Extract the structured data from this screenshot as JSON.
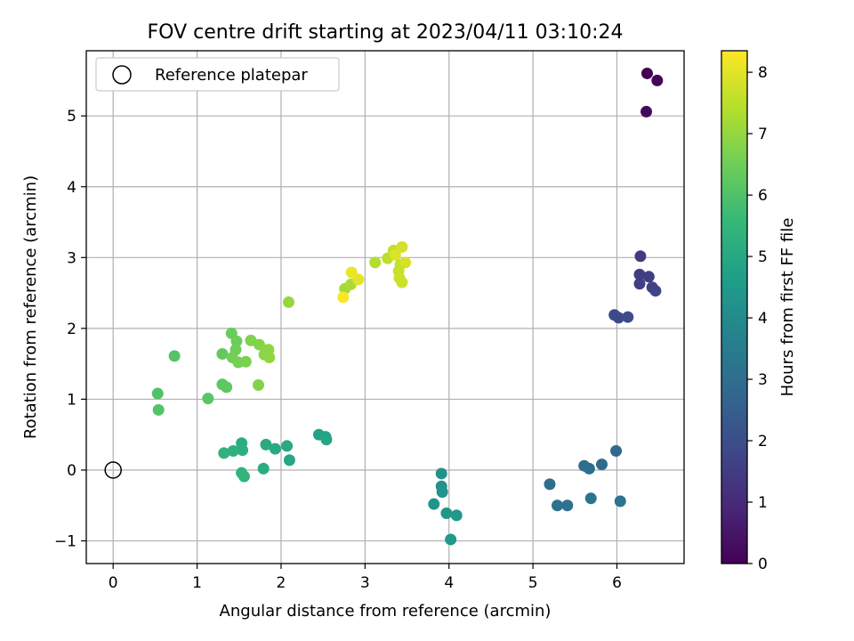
{
  "chart_data": {
    "type": "scatter",
    "title": "FOV centre drift starting at 2023/04/11 03:10:24",
    "xlabel": "Angular distance from reference (arcmin)",
    "ylabel": "Rotation from reference (arcmin)",
    "xlim": [
      -0.32,
      6.8
    ],
    "ylim": [
      -1.32,
      5.92
    ],
    "xticks": [
      0,
      1,
      2,
      3,
      4,
      5,
      6
    ],
    "yticks": [
      -1,
      0,
      1,
      2,
      3,
      4,
      5
    ],
    "xtick_labels": [
      "0",
      "1",
      "2",
      "3",
      "4",
      "5",
      "6"
    ],
    "ytick_labels": [
      "−1",
      "0",
      "1",
      "2",
      "3",
      "4",
      "5"
    ],
    "grid": true,
    "legend": {
      "placement": "top-left",
      "label": "Reference platepar"
    },
    "reference_point": {
      "x": 0,
      "y": 0
    },
    "colorbar": {
      "label": "Hours from first FF file",
      "min": 0,
      "max": 8.35,
      "ticks": [
        0,
        1,
        2,
        3,
        4,
        5,
        6,
        7,
        8
      ],
      "tick_labels": [
        "0",
        "1",
        "2",
        "3",
        "4",
        "5",
        "6",
        "7",
        "8"
      ],
      "colormap": "viridis"
    },
    "points": [
      {
        "x": 6.36,
        "y": 5.6,
        "c": 0.0
      },
      {
        "x": 6.48,
        "y": 5.5,
        "c": 0.1
      },
      {
        "x": 6.35,
        "y": 5.06,
        "c": 0.2
      },
      {
        "x": 6.28,
        "y": 3.02,
        "c": 1.4
      },
      {
        "x": 6.27,
        "y": 2.76,
        "c": 1.5
      },
      {
        "x": 6.38,
        "y": 2.73,
        "c": 1.55
      },
      {
        "x": 6.27,
        "y": 2.63,
        "c": 1.6
      },
      {
        "x": 6.42,
        "y": 2.58,
        "c": 1.65
      },
      {
        "x": 6.46,
        "y": 2.53,
        "c": 1.7
      },
      {
        "x": 5.97,
        "y": 2.19,
        "c": 1.85
      },
      {
        "x": 6.02,
        "y": 2.15,
        "c": 1.9
      },
      {
        "x": 6.13,
        "y": 2.16,
        "c": 1.95
      },
      {
        "x": 5.99,
        "y": 0.27,
        "c": 2.8
      },
      {
        "x": 5.82,
        "y": 0.08,
        "c": 2.9
      },
      {
        "x": 5.61,
        "y": 0.06,
        "c": 2.95
      },
      {
        "x": 5.67,
        "y": 0.02,
        "c": 3.0
      },
      {
        "x": 5.2,
        "y": -0.2,
        "c": 3.05
      },
      {
        "x": 5.29,
        "y": -0.5,
        "c": 3.1
      },
      {
        "x": 5.41,
        "y": -0.5,
        "c": 3.15
      },
      {
        "x": 5.69,
        "y": -0.4,
        "c": 3.2
      },
      {
        "x": 6.04,
        "y": -0.44,
        "c": 3.25
      },
      {
        "x": 3.91,
        "y": -0.05,
        "c": 4.2
      },
      {
        "x": 3.91,
        "y": -0.23,
        "c": 4.25
      },
      {
        "x": 3.92,
        "y": -0.31,
        "c": 4.3
      },
      {
        "x": 3.82,
        "y": -0.48,
        "c": 4.35
      },
      {
        "x": 3.97,
        "y": -0.61,
        "c": 4.4
      },
      {
        "x": 4.09,
        "y": -0.64,
        "c": 4.45
      },
      {
        "x": 4.02,
        "y": -0.98,
        "c": 4.5
      },
      {
        "x": 2.45,
        "y": 0.5,
        "c": 4.8
      },
      {
        "x": 2.53,
        "y": 0.47,
        "c": 4.85
      },
      {
        "x": 2.54,
        "y": 0.43,
        "c": 4.9
      },
      {
        "x": 2.1,
        "y": 0.14,
        "c": 4.95
      },
      {
        "x": 2.07,
        "y": 0.34,
        "c": 5.0
      },
      {
        "x": 1.93,
        "y": 0.3,
        "c": 5.05
      },
      {
        "x": 1.82,
        "y": 0.36,
        "c": 5.1
      },
      {
        "x": 1.79,
        "y": 0.02,
        "c": 5.15
      },
      {
        "x": 1.53,
        "y": 0.38,
        "c": 5.2
      },
      {
        "x": 1.54,
        "y": 0.28,
        "c": 5.25
      },
      {
        "x": 1.43,
        "y": 0.27,
        "c": 5.3
      },
      {
        "x": 1.32,
        "y": 0.24,
        "c": 5.35
      },
      {
        "x": 1.53,
        "y": -0.04,
        "c": 5.4
      },
      {
        "x": 1.56,
        "y": -0.09,
        "c": 5.45
      },
      {
        "x": 0.53,
        "y": 1.08,
        "c": 6.0
      },
      {
        "x": 0.54,
        "y": 0.85,
        "c": 6.05
      },
      {
        "x": 0.73,
        "y": 1.61,
        "c": 6.1
      },
      {
        "x": 1.13,
        "y": 1.01,
        "c": 6.15
      },
      {
        "x": 1.3,
        "y": 1.21,
        "c": 6.2
      },
      {
        "x": 1.35,
        "y": 1.17,
        "c": 6.25
      },
      {
        "x": 1.3,
        "y": 1.64,
        "c": 6.3
      },
      {
        "x": 1.41,
        "y": 1.93,
        "c": 6.4
      },
      {
        "x": 1.47,
        "y": 1.82,
        "c": 6.45
      },
      {
        "x": 1.46,
        "y": 1.7,
        "c": 6.5
      },
      {
        "x": 1.42,
        "y": 1.59,
        "c": 6.55
      },
      {
        "x": 1.49,
        "y": 1.52,
        "c": 6.6
      },
      {
        "x": 1.58,
        "y": 1.53,
        "c": 6.65
      },
      {
        "x": 1.64,
        "y": 1.83,
        "c": 6.7
      },
      {
        "x": 1.73,
        "y": 1.2,
        "c": 6.75
      },
      {
        "x": 1.74,
        "y": 1.77,
        "c": 6.8
      },
      {
        "x": 1.8,
        "y": 1.63,
        "c": 6.85
      },
      {
        "x": 1.85,
        "y": 1.7,
        "c": 6.9
      },
      {
        "x": 1.86,
        "y": 1.59,
        "c": 6.95
      },
      {
        "x": 2.09,
        "y": 2.37,
        "c": 7.0
      },
      {
        "x": 2.76,
        "y": 2.56,
        "c": 7.2
      },
      {
        "x": 2.83,
        "y": 2.62,
        "c": 7.3
      },
      {
        "x": 3.12,
        "y": 2.93,
        "c": 7.4
      },
      {
        "x": 3.27,
        "y": 2.99,
        "c": 7.5
      },
      {
        "x": 3.34,
        "y": 3.1,
        "c": 7.55
      },
      {
        "x": 3.42,
        "y": 2.9,
        "c": 7.6
      },
      {
        "x": 3.4,
        "y": 2.81,
        "c": 7.65
      },
      {
        "x": 3.41,
        "y": 2.71,
        "c": 7.7
      },
      {
        "x": 3.44,
        "y": 2.65,
        "c": 7.75
      },
      {
        "x": 3.44,
        "y": 3.15,
        "c": 7.8
      },
      {
        "x": 3.48,
        "y": 2.93,
        "c": 7.85
      },
      {
        "x": 3.36,
        "y": 3.04,
        "c": 7.9
      },
      {
        "x": 2.92,
        "y": 2.69,
        "c": 8.0
      },
      {
        "x": 2.84,
        "y": 2.79,
        "c": 8.1
      },
      {
        "x": 2.74,
        "y": 2.44,
        "c": 8.3
      }
    ]
  }
}
